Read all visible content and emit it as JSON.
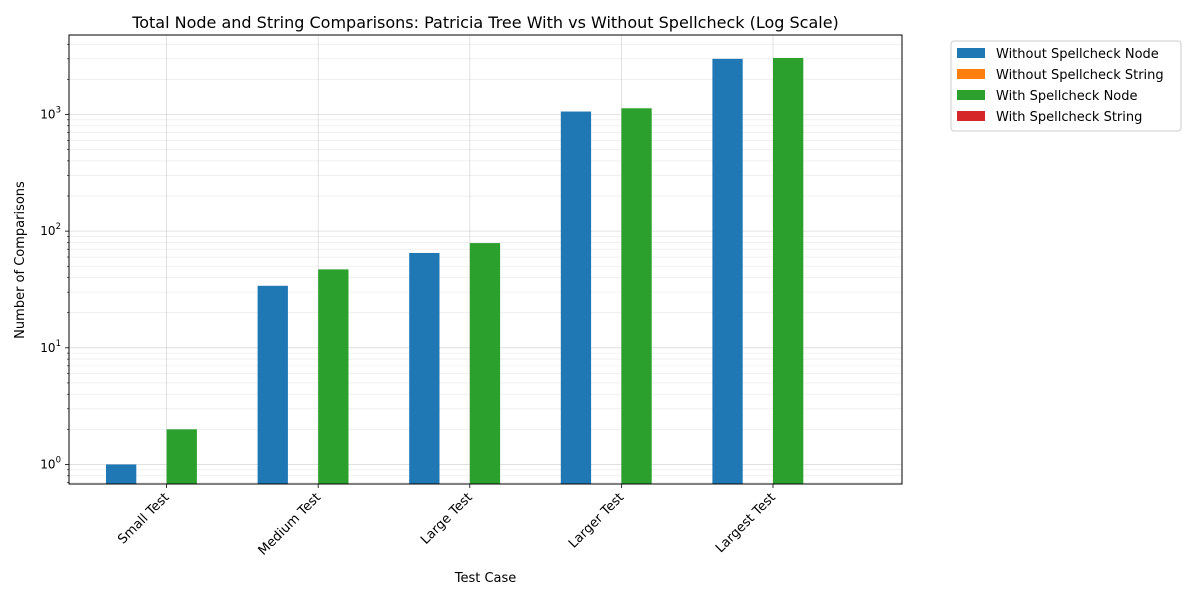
{
  "chart_data": {
    "type": "bar",
    "title": "Total Node and String Comparisons: Patricia Tree With vs Without Spellcheck (Log Scale)",
    "xlabel": "Test Case",
    "ylabel": "Number of Comparisons",
    "yscale": "log",
    "ylim": [
      0.68,
      4800
    ],
    "grid": true,
    "legend_position": "outside-top-right",
    "categories": [
      "Small Test",
      "Medium Test",
      "Large Test",
      "Larger Test",
      "Largest Test"
    ],
    "y_ticks": [
      {
        "value": 1,
        "base": "10",
        "exp": "0"
      },
      {
        "value": 10,
        "base": "10",
        "exp": "1"
      },
      {
        "value": 100,
        "base": "10",
        "exp": "2"
      },
      {
        "value": 1000,
        "base": "10",
        "exp": "3"
      }
    ],
    "series": [
      {
        "name": "Without Spellcheck Node",
        "color": "#1f77b4",
        "values": [
          1,
          34,
          65,
          1060,
          3000
        ]
      },
      {
        "name": "Without Spellcheck String",
        "color": "#ff7f0e",
        "values": [
          0,
          0,
          0,
          0,
          0
        ]
      },
      {
        "name": "With Spellcheck Node",
        "color": "#2ca02c",
        "values": [
          2,
          47,
          79,
          1130,
          3050
        ]
      },
      {
        "name": "With Spellcheck String",
        "color": "#d62728",
        "values": [
          0,
          0,
          0,
          0,
          0
        ]
      }
    ]
  }
}
